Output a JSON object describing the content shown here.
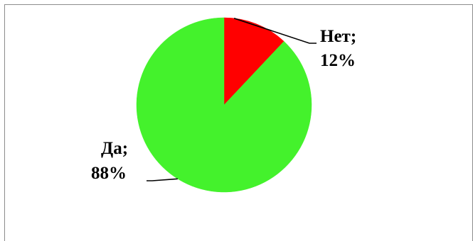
{
  "chart_data": {
    "type": "pie",
    "title": "",
    "slices": [
      {
        "label": "Нет",
        "value": 12,
        "display_value": "12%",
        "color": "#ff0000"
      },
      {
        "label": "Да",
        "value": 88,
        "display_value": "88%",
        "color": "#44f22c"
      }
    ],
    "start_angle": "12 o'clock",
    "direction": "clockwise",
    "legend": "none",
    "data_labels": "outside with leader lines"
  }
}
